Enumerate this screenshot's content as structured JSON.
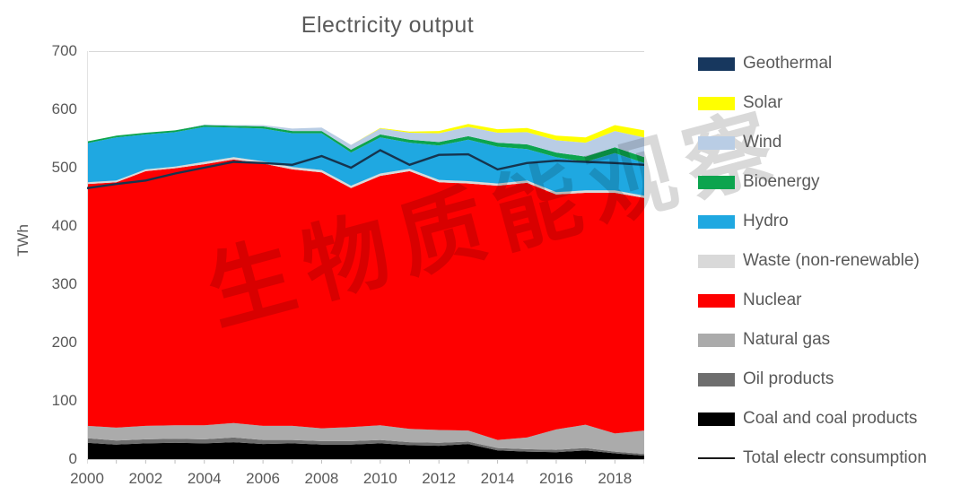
{
  "title": "Electricity output",
  "watermark_text": "生物质能观察",
  "y_axis": {
    "label": "TWh"
  },
  "legend": {
    "position": "right",
    "items": [
      {
        "id": "geothermal",
        "label": "Geothermal",
        "color": "#17375E",
        "kind": "box"
      },
      {
        "id": "solar",
        "label": "Solar",
        "color": "#FFFF00",
        "kind": "box"
      },
      {
        "id": "wind",
        "label": "Wind",
        "color": "#B9CDE5",
        "kind": "box"
      },
      {
        "id": "bioenergy",
        "label": "Bioenergy",
        "color": "#0CA44E",
        "kind": "box"
      },
      {
        "id": "hydro",
        "label": "Hydro",
        "color": "#1FA8E1",
        "kind": "box"
      },
      {
        "id": "waste",
        "label": "Waste (non-renewable)",
        "color": "#D9D9D9",
        "kind": "box"
      },
      {
        "id": "nuclear",
        "label": "Nuclear",
        "color": "#FE0000",
        "kind": "box"
      },
      {
        "id": "natural-gas",
        "label": "Natural gas",
        "color": "#ABABAB",
        "kind": "box"
      },
      {
        "id": "oil-products",
        "label": "Oil products",
        "color": "#6E6E6E",
        "kind": "box"
      },
      {
        "id": "coal",
        "label": "Coal and coal products",
        "color": "#000000",
        "kind": "box"
      },
      {
        "id": "total-consumption",
        "label": "Total electr consumption",
        "color": "#16344E",
        "kind": "line"
      }
    ]
  },
  "chart_data": {
    "type": "area",
    "subtype": "stacked",
    "title": "Electricity output",
    "xlabel": "",
    "ylabel": "TWh",
    "ylim": [
      0,
      700
    ],
    "yticks": [
      0,
      100,
      200,
      300,
      400,
      500,
      600,
      700
    ],
    "x": [
      2000,
      2001,
      2002,
      2003,
      2004,
      2005,
      2006,
      2007,
      2008,
      2009,
      2010,
      2011,
      2012,
      2013,
      2014,
      2015,
      2016,
      2017,
      2018,
      2019
    ],
    "xtick_years": [
      2000,
      2002,
      2004,
      2006,
      2008,
      2010,
      2012,
      2014,
      2016,
      2018
    ],
    "grid": "top gridline only",
    "legend_position": "right",
    "units": "TWh",
    "series": [
      {
        "id": "coal",
        "name": "Coal and coal products",
        "color": "#000000",
        "values": [
          28,
          25,
          27,
          28,
          27,
          29,
          26,
          27,
          25,
          25,
          27,
          24,
          23,
          26,
          15,
          13,
          12,
          15,
          10,
          6
        ]
      },
      {
        "id": "oil",
        "name": "Oil products",
        "color": "#6E6E6E",
        "values": [
          8,
          7,
          7,
          7,
          7,
          8,
          7,
          6,
          6,
          6,
          6,
          5,
          5,
          4,
          4,
          4,
          4,
          4,
          3,
          3
        ]
      },
      {
        "id": "gas",
        "name": "Natural gas",
        "color": "#ABABAB",
        "values": [
          21,
          22,
          23,
          23,
          24,
          25,
          24,
          24,
          22,
          24,
          25,
          23,
          22,
          19,
          14,
          20,
          35,
          40,
          31,
          40
        ]
      },
      {
        "id": "nuclear",
        "name": "Nuclear",
        "color": "#FE0000",
        "values": [
          415,
          421,
          437,
          441,
          448,
          452,
          450,
          440,
          439,
          410,
          428,
          442,
          425,
          424,
          436,
          437,
          403,
          398,
          413,
          399
        ]
      },
      {
        "id": "waste",
        "name": "Waste (non-renewable)",
        "color": "#D9D9D9",
        "values": [
          3,
          3,
          3,
          3,
          4,
          4,
          4,
          4,
          4,
          4,
          4,
          4,
          4,
          4,
          4,
          4,
          4,
          4,
          4,
          4
        ]
      },
      {
        "id": "hydro",
        "name": "Hydro",
        "color": "#1FA8E1",
        "values": [
          67,
          74,
          60,
          59,
          60,
          51,
          56,
          58,
          63,
          57,
          62,
          45,
          59,
          71,
          63,
          54,
          60,
          49,
          64,
          56
        ]
      },
      {
        "id": "bioenergy",
        "name": "Bioenergy",
        "color": "#0CA44E",
        "values": [
          3,
          3,
          3,
          3,
          3,
          3,
          4,
          4,
          4,
          5,
          5,
          5,
          6,
          6,
          7,
          8,
          8,
          9,
          10,
          10
        ]
      },
      {
        "id": "wind",
        "name": "Wind",
        "color": "#B9CDE5",
        "values": [
          0,
          0,
          0,
          0,
          1,
          1,
          2,
          4,
          6,
          8,
          10,
          12,
          15,
          16,
          17,
          21,
          21,
          24,
          28,
          34
        ]
      },
      {
        "id": "solar",
        "name": "Solar",
        "color": "#FFFF00",
        "values": [
          0,
          0,
          0,
          0,
          0,
          0,
          0,
          0,
          0,
          0,
          1,
          2,
          4,
          5,
          6,
          7,
          8,
          9,
          10,
          12
        ]
      },
      {
        "id": "geothermal",
        "name": "Geothermal",
        "color": "#17375E",
        "values": [
          0,
          0,
          0,
          0,
          0,
          0,
          0,
          0,
          0,
          0,
          0,
          0,
          0,
          0,
          0,
          0,
          0,
          0,
          0,
          0
        ]
      }
    ],
    "line_series": {
      "id": "total-consumption",
      "name": "Total electr consumption",
      "color": "#16344E",
      "values": [
        465,
        472,
        478,
        490,
        500,
        510,
        508,
        505,
        520,
        500,
        530,
        505,
        522,
        523,
        497,
        508,
        512,
        510,
        508,
        505
      ]
    }
  }
}
